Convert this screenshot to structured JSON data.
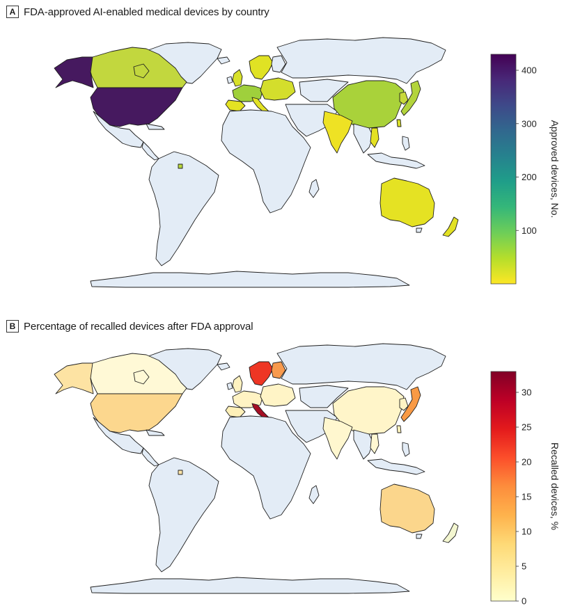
{
  "panels": [
    {
      "letter": "A",
      "title": "FDA-approved AI-enabled medical devices by country",
      "colorbar": {
        "label": "Approved devices, No.",
        "min": 0,
        "max": 430,
        "ticks": [
          100,
          200,
          300,
          400
        ],
        "scale": "viridis (reversed)",
        "stops": [
          "#fde725",
          "#b5de2b",
          "#6ece58",
          "#35b779",
          "#1f9e89",
          "#26828e",
          "#31688e",
          "#3e4989",
          "#482878",
          "#440154"
        ]
      },
      "default_land_color": "#e3ecf6",
      "colored_regions": [
        {
          "id": "usa",
          "color": "#46195f"
        },
        {
          "id": "alaska",
          "color": "#46195f"
        },
        {
          "id": "canada",
          "color": "#c2d73e"
        },
        {
          "id": "greenland",
          "color": "#e3ecf6"
        },
        {
          "id": "europe",
          "color": "#d4de2c"
        },
        {
          "id": "uk",
          "color": "#d8e12a"
        },
        {
          "id": "scandinavia",
          "color": "#e0e224"
        },
        {
          "id": "germany-france",
          "color": "#9fd03c"
        },
        {
          "id": "spain",
          "color": "#e4e223"
        },
        {
          "id": "italy",
          "color": "#e2e224"
        },
        {
          "id": "russia",
          "color": "#e3ecf6"
        },
        {
          "id": "china",
          "color": "#a9d23a"
        },
        {
          "id": "india",
          "color": "#eee224"
        },
        {
          "id": "korea",
          "color": "#c8d93b"
        },
        {
          "id": "japan",
          "color": "#b3d43c"
        },
        {
          "id": "taiwan",
          "color": "#d9df2a"
        },
        {
          "id": "vietnam",
          "color": "#e4e123"
        },
        {
          "id": "australia",
          "color": "#e5e223"
        },
        {
          "id": "new-zealand",
          "color": "#e2e123"
        },
        {
          "id": "venezuela-dot",
          "color": "#b9d83a"
        }
      ]
    },
    {
      "letter": "B",
      "title": "Percentage of recalled devices after FDA approval",
      "colorbar": {
        "label": "Recalled devices, %",
        "min": 0,
        "max": 33,
        "ticks": [
          0,
          5,
          10,
          15,
          20,
          25,
          30
        ],
        "scale": "YlOrRd",
        "stops": [
          "#ffffcc",
          "#ffeda0",
          "#fed976",
          "#feb24c",
          "#fd8d3c",
          "#fc4e2a",
          "#e31a1c",
          "#bd0026",
          "#800026"
        ]
      },
      "default_land_color": "#e3ecf6",
      "colored_regions": [
        {
          "id": "usa",
          "color": "#fcd78e"
        },
        {
          "id": "alaska",
          "color": "#fde3a3"
        },
        {
          "id": "canada",
          "color": "#fff9d6"
        },
        {
          "id": "greenland",
          "color": "#e3ecf6"
        },
        {
          "id": "europe",
          "color": "#fff4c6"
        },
        {
          "id": "uk",
          "color": "#fef2c0"
        },
        {
          "id": "scandinavia",
          "color": "#ee3624"
        },
        {
          "id": "finland",
          "color": "#f89a4d"
        },
        {
          "id": "germany-france",
          "color": "#fff3c3"
        },
        {
          "id": "spain",
          "color": "#fef0b8"
        },
        {
          "id": "italy",
          "color": "#a50f24"
        },
        {
          "id": "russia",
          "color": "#e3ecf6"
        },
        {
          "id": "china",
          "color": "#fff5c9"
        },
        {
          "id": "india",
          "color": "#fff7cf"
        },
        {
          "id": "korea",
          "color": "#fff4c4"
        },
        {
          "id": "japan",
          "color": "#f99a45"
        },
        {
          "id": "taiwan",
          "color": "#fff2bc"
        },
        {
          "id": "vietnam",
          "color": "#fff8d2"
        },
        {
          "id": "australia",
          "color": "#fbd68c"
        },
        {
          "id": "new-zealand",
          "color": "#f3f6d0"
        },
        {
          "id": "venezuela-dot",
          "color": "#fde4a8"
        }
      ]
    }
  ]
}
